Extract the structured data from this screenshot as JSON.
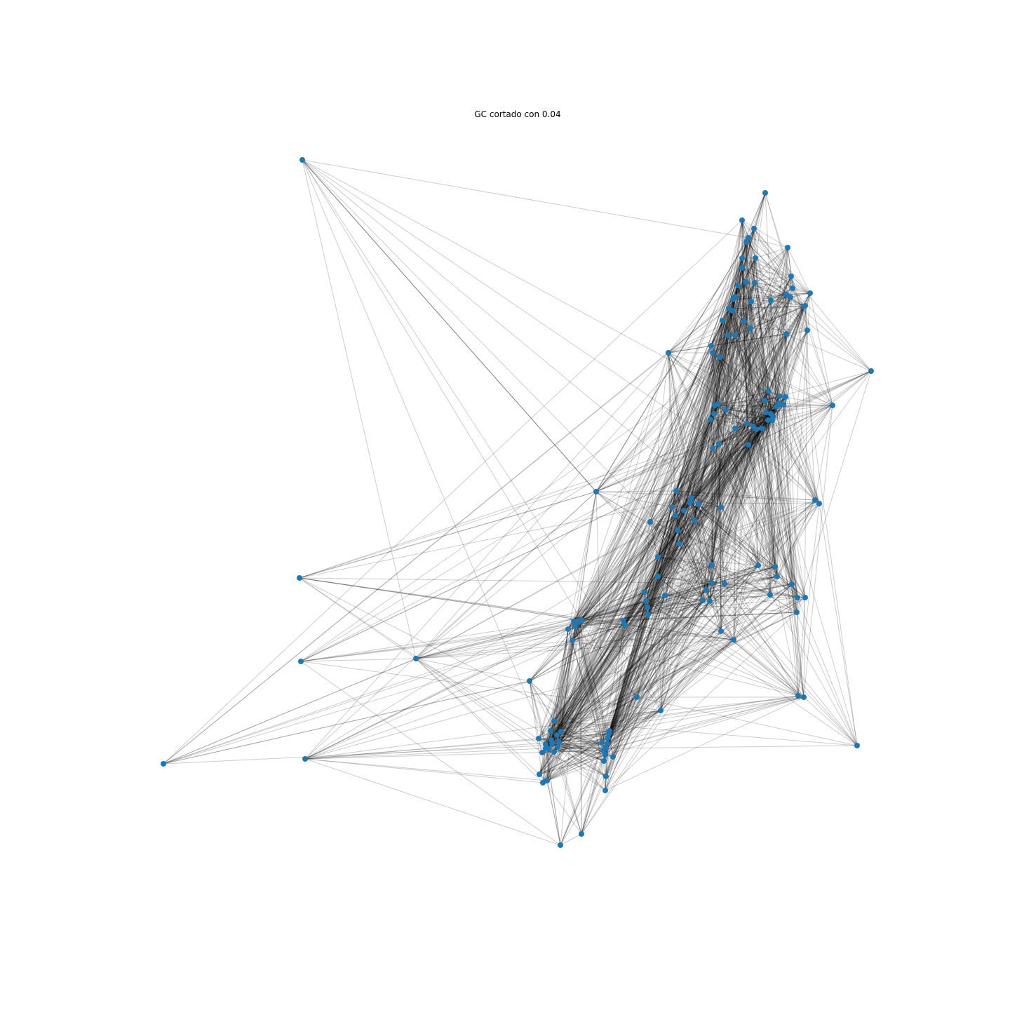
{
  "title": "GC cortado con 0.04",
  "colors": {
    "node": "#1f77b4",
    "edge": "#000000",
    "background": "#ffffff"
  }
}
